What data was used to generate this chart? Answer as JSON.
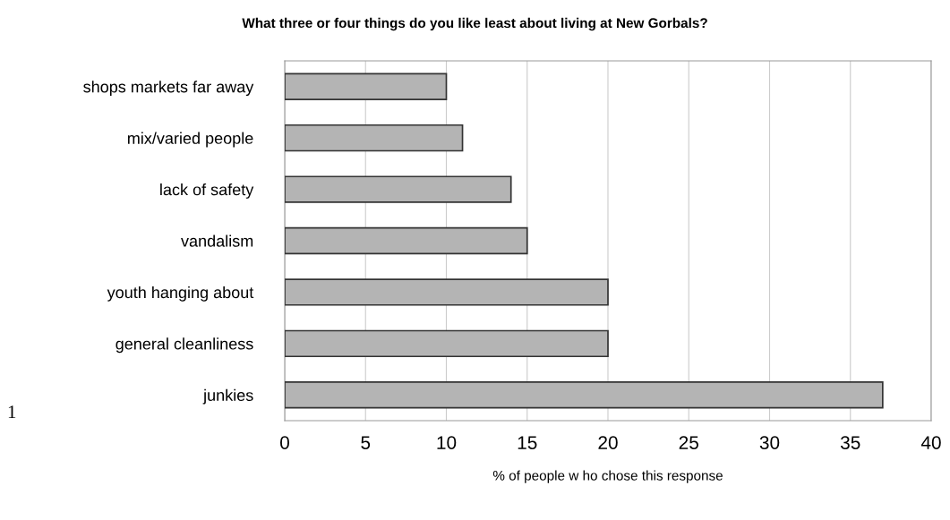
{
  "chart_data": {
    "type": "bar",
    "orientation": "horizontal",
    "title": "What three or four things do you like least about living at New Gorbals?",
    "xlabel": "% of people w ho chose this response",
    "categories": [
      "shops markets far away",
      "mix/varied people",
      "lack of safety",
      "vandalism",
      "youth hanging about",
      "general cleanliness",
      "junkies"
    ],
    "values": [
      10,
      11,
      14,
      15,
      20,
      20,
      37
    ],
    "color": "#b4b4b4",
    "xlim": [
      0,
      40
    ],
    "xticks": [
      0,
      5,
      10,
      15,
      20,
      25,
      30,
      35,
      40
    ],
    "grid": "x",
    "annotations": [
      "1"
    ]
  }
}
